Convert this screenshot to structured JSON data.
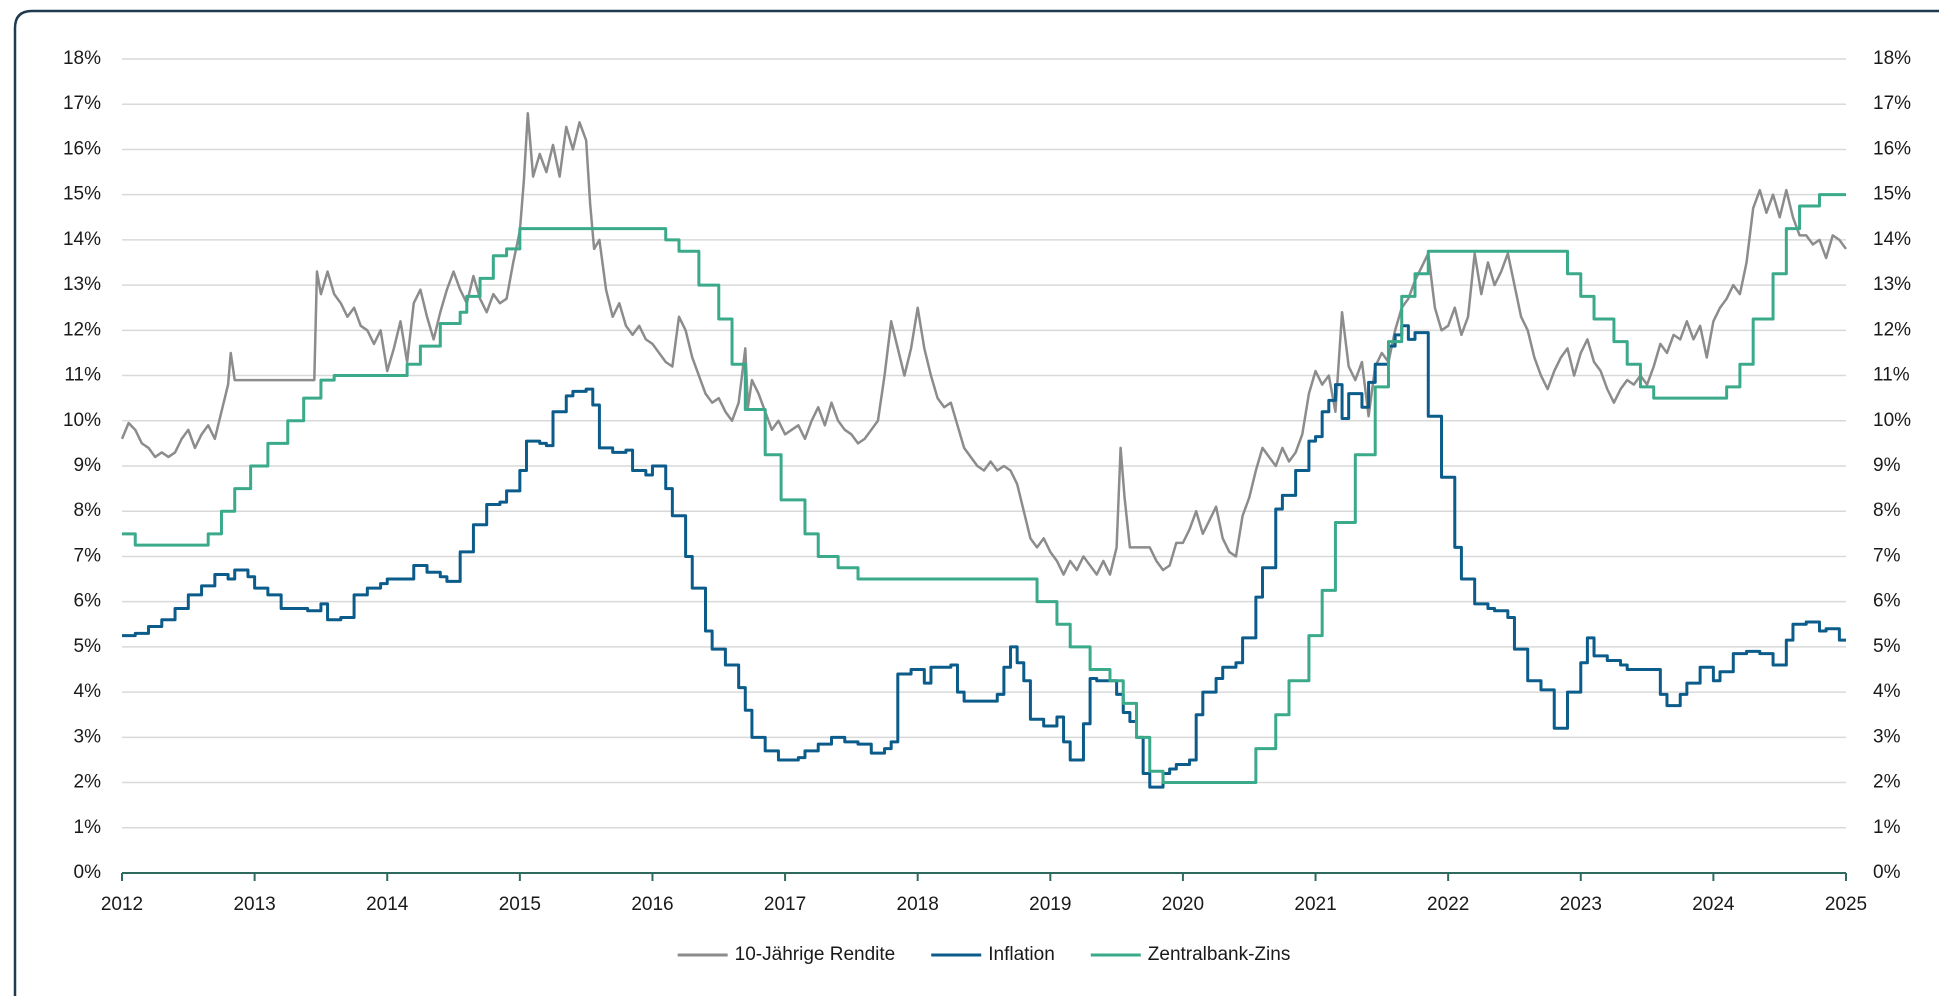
{
  "chart_data": {
    "type": "line",
    "xlim": [
      2012,
      2025
    ],
    "xticks": [
      2012,
      2013,
      2014,
      2015,
      2016,
      2017,
      2018,
      2019,
      2020,
      2021,
      2022,
      2023,
      2024,
      2025
    ],
    "ylim": [
      0,
      18
    ],
    "yticks": [
      {
        "value": 0,
        "label": "0%"
      },
      {
        "value": 1,
        "label": "1%"
      },
      {
        "value": 2,
        "label": "2%"
      },
      {
        "value": 3,
        "label": "3%"
      },
      {
        "value": 4,
        "label": "4%"
      },
      {
        "value": 5,
        "label": "5%"
      },
      {
        "value": 6,
        "label": "6%"
      },
      {
        "value": 7,
        "label": "7%"
      },
      {
        "value": 8,
        "label": "8%"
      },
      {
        "value": 9,
        "label": "9%"
      },
      {
        "value": 10,
        "label": "10%"
      },
      {
        "value": 11,
        "label": "11%"
      },
      {
        "value": 12,
        "label": "12%"
      },
      {
        "value": 13,
        "label": "13%"
      },
      {
        "value": 14,
        "label": "14%"
      },
      {
        "value": 15,
        "label": "15%"
      },
      {
        "value": 16,
        "label": "16%"
      },
      {
        "value": 17,
        "label": "17%"
      },
      {
        "value": 18,
        "label": "18%"
      }
    ],
    "y2lim": [
      0,
      18
    ],
    "y2ticks": [
      {
        "value": 0,
        "label": "0%"
      },
      {
        "value": 1,
        "label": "1%"
      },
      {
        "value": 2,
        "label": "2%"
      },
      {
        "value": 3,
        "label": "3%"
      },
      {
        "value": 4,
        "label": "4%"
      },
      {
        "value": 5,
        "label": "5%"
      },
      {
        "value": 6,
        "label": "6%"
      },
      {
        "value": 7,
        "label": "7%"
      },
      {
        "value": 8,
        "label": "8%"
      },
      {
        "value": 9,
        "label": "9%"
      },
      {
        "value": 10,
        "label": "10%"
      },
      {
        "value": 11,
        "label": "11%"
      },
      {
        "value": 12,
        "label": "12%"
      },
      {
        "value": 13,
        "label": "13%"
      },
      {
        "value": 14,
        "label": "14%"
      },
      {
        "value": 15,
        "label": "15%"
      },
      {
        "value": 16,
        "label": "16%"
      },
      {
        "value": 17,
        "label": "17%"
      },
      {
        "value": 18,
        "label": "18%"
      }
    ],
    "grid": true,
    "legend": "bottom",
    "series": [
      {
        "name": "10-Jährige Rendite",
        "color": "#8c8c8c",
        "step": false,
        "x": [
          2012.0,
          2012.05,
          2012.1,
          2012.15,
          2012.2,
          2012.25,
          2012.3,
          2012.35,
          2012.4,
          2012.45,
          2012.5,
          2012.55,
          2012.6,
          2012.65,
          2012.7,
          2012.75,
          2012.8,
          2012.82,
          2012.85,
          2013.0,
          2013.45,
          2013.47,
          2013.5,
          2013.55,
          2013.6,
          2013.65,
          2013.7,
          2013.75,
          2013.8,
          2013.85,
          2013.9,
          2013.95,
          2014.0,
          2014.05,
          2014.1,
          2014.15,
          2014.2,
          2014.25,
          2014.3,
          2014.35,
          2014.4,
          2014.45,
          2014.5,
          2014.55,
          2014.6,
          2014.65,
          2014.7,
          2014.75,
          2014.8,
          2014.85,
          2014.9,
          2014.95,
          2015.0,
          2015.03,
          2015.06,
          2015.1,
          2015.15,
          2015.2,
          2015.25,
          2015.3,
          2015.35,
          2015.4,
          2015.45,
          2015.5,
          2015.53,
          2015.56,
          2015.6,
          2015.65,
          2015.7,
          2015.75,
          2015.8,
          2015.85,
          2015.9,
          2015.95,
          2016.0,
          2016.05,
          2016.1,
          2016.15,
          2016.2,
          2016.25,
          2016.3,
          2016.35,
          2016.4,
          2016.45,
          2016.5,
          2016.55,
          2016.6,
          2016.65,
          2016.7,
          2016.72,
          2016.75,
          2016.8,
          2016.85,
          2016.9,
          2016.95,
          2017.0,
          2017.05,
          2017.1,
          2017.15,
          2017.2,
          2017.25,
          2017.3,
          2017.35,
          2017.4,
          2017.45,
          2017.5,
          2017.55,
          2017.6,
          2017.65,
          2017.7,
          2017.75,
          2017.8,
          2017.85,
          2017.9,
          2017.95,
          2018.0,
          2018.05,
          2018.1,
          2018.15,
          2018.2,
          2018.25,
          2018.3,
          2018.35,
          2018.4,
          2018.45,
          2018.5,
          2018.55,
          2018.6,
          2018.65,
          2018.7,
          2018.75,
          2018.8,
          2018.85,
          2018.9,
          2018.95,
          2019.0,
          2019.05,
          2019.1,
          2019.15,
          2019.2,
          2019.25,
          2019.3,
          2019.35,
          2019.4,
          2019.45,
          2019.5,
          2019.53,
          2019.56,
          2019.6,
          2019.75,
          2019.8,
          2019.85,
          2019.9,
          2019.95,
          2020.0,
          2020.05,
          2020.1,
          2020.15,
          2020.2,
          2020.25,
          2020.3,
          2020.35,
          2020.4,
          2020.45,
          2020.5,
          2020.55,
          2020.6,
          2020.65,
          2020.7,
          2020.75,
          2020.8,
          2020.85,
          2020.9,
          2020.95,
          2021.0,
          2021.05,
          2021.1,
          2021.15,
          2021.2,
          2021.25,
          2021.3,
          2021.35,
          2021.4,
          2021.45,
          2021.5,
          2021.55,
          2021.6,
          2021.65,
          2021.7,
          2021.75,
          2021.8,
          2021.85,
          2021.9,
          2021.95,
          2022.0,
          2022.05,
          2022.1,
          2022.15,
          2022.2,
          2022.25,
          2022.3,
          2022.35,
          2022.4,
          2022.45,
          2022.5,
          2022.55,
          2022.6,
          2022.65,
          2022.7,
          2022.75,
          2022.8,
          2022.85,
          2022.9,
          2022.95,
          2023.0,
          2023.05,
          2023.1,
          2023.15,
          2023.2,
          2023.25,
          2023.3,
          2023.35,
          2023.4,
          2023.45,
          2023.5,
          2023.55,
          2023.6,
          2023.65,
          2023.7,
          2023.75,
          2023.8,
          2023.85,
          2023.9,
          2023.95,
          2024.0,
          2024.05,
          2024.1,
          2024.15,
          2024.2,
          2024.25,
          2024.3,
          2024.35,
          2024.4,
          2024.45,
          2024.5,
          2024.55,
          2024.6,
          2024.65,
          2024.7,
          2024.75,
          2024.8,
          2024.85,
          2024.9,
          2024.95,
          2025.0
        ],
        "values": [
          9.6,
          9.95,
          9.8,
          9.5,
          9.4,
          9.2,
          9.3,
          9.2,
          9.3,
          9.6,
          9.8,
          9.4,
          9.7,
          9.9,
          9.6,
          10.2,
          10.8,
          11.5,
          10.9,
          10.9,
          10.9,
          13.3,
          12.8,
          13.3,
          12.8,
          12.6,
          12.3,
          12.5,
          12.1,
          12.0,
          11.7,
          12.0,
          11.1,
          11.6,
          12.2,
          11.3,
          12.6,
          12.9,
          12.3,
          11.8,
          12.4,
          12.9,
          13.3,
          12.9,
          12.6,
          13.2,
          12.7,
          12.4,
          12.8,
          12.6,
          12.7,
          13.5,
          14.2,
          15.3,
          16.8,
          15.4,
          15.9,
          15.5,
          16.1,
          15.4,
          16.5,
          16.0,
          16.6,
          16.2,
          14.8,
          13.8,
          14.0,
          12.9,
          12.3,
          12.6,
          12.1,
          11.9,
          12.1,
          11.8,
          11.7,
          11.5,
          11.3,
          11.2,
          12.3,
          12.0,
          11.4,
          11.0,
          10.6,
          10.4,
          10.5,
          10.2,
          10.0,
          10.4,
          11.6,
          10.3,
          10.9,
          10.6,
          10.2,
          9.8,
          10.0,
          9.7,
          9.8,
          9.9,
          9.6,
          10.0,
          10.3,
          9.9,
          10.4,
          10.0,
          9.8,
          9.7,
          9.5,
          9.6,
          9.8,
          10.0,
          11.0,
          12.2,
          11.6,
          11.0,
          11.6,
          12.5,
          11.6,
          11.0,
          10.5,
          10.3,
          10.4,
          9.9,
          9.4,
          9.2,
          9.0,
          8.9,
          9.1,
          8.9,
          9.0,
          8.9,
          8.6,
          8.0,
          7.4,
          7.2,
          7.4,
          7.1,
          6.9,
          6.6,
          6.9,
          6.7,
          7.0,
          6.8,
          6.6,
          6.9,
          6.6,
          7.2,
          9.4,
          8.3,
          7.2,
          7.2,
          6.9,
          6.7,
          6.8,
          7.3,
          7.3,
          7.6,
          8.0,
          7.5,
          7.8,
          8.1,
          7.4,
          7.1,
          7.0,
          7.9,
          8.3,
          8.9,
          9.4,
          9.2,
          9.0,
          9.4,
          9.1,
          9.3,
          9.7,
          10.6,
          11.1,
          10.8,
          11.0,
          10.2,
          12.4,
          11.2,
          10.9,
          11.3,
          10.1,
          11.2,
          11.5,
          11.3,
          12.0,
          12.5,
          12.7,
          13.1,
          13.4,
          13.7,
          12.5,
          12.0,
          12.1,
          12.5,
          11.9,
          12.3,
          13.7,
          12.8,
          13.5,
          13.0,
          13.3,
          13.7,
          13.0,
          12.3,
          12.0,
          11.4,
          11.0,
          10.7,
          11.1,
          11.4,
          11.6,
          11.0,
          11.5,
          11.8,
          11.3,
          11.1,
          10.7,
          10.4,
          10.7,
          10.9,
          10.8,
          11.0,
          10.8,
          11.2,
          11.7,
          11.5,
          11.9,
          11.8,
          12.2,
          11.8,
          12.1,
          11.4,
          12.2,
          12.5,
          12.7,
          13.0,
          12.8,
          13.5,
          14.7,
          15.1,
          14.6,
          15.0,
          14.5,
          15.1,
          14.5,
          14.1,
          14.1,
          13.9,
          14.0,
          13.6,
          14.1,
          14.0,
          13.8
        ]
      },
      {
        "name": "Inflation",
        "color": "#0b5c8a",
        "step": true,
        "x": [
          2012.0,
          2012.1,
          2012.2,
          2012.3,
          2012.4,
          2012.5,
          2012.6,
          2012.7,
          2012.8,
          2012.85,
          2012.95,
          2013.0,
          2013.1,
          2013.2,
          2013.4,
          2013.5,
          2013.55,
          2013.65,
          2013.75,
          2013.85,
          2013.95,
          2014.0,
          2014.2,
          2014.3,
          2014.4,
          2014.45,
          2014.55,
          2014.65,
          2014.75,
          2014.85,
          2014.9,
          2015.0,
          2015.05,
          2015.15,
          2015.2,
          2015.25,
          2015.35,
          2015.4,
          2015.5,
          2015.55,
          2015.6,
          2015.7,
          2015.8,
          2015.85,
          2015.95,
          2016.0,
          2016.1,
          2016.15,
          2016.25,
          2016.3,
          2016.4,
          2016.45,
          2016.55,
          2016.65,
          2016.7,
          2016.75,
          2016.85,
          2016.95,
          2017.1,
          2017.15,
          2017.25,
          2017.35,
          2017.45,
          2017.55,
          2017.65,
          2017.75,
          2017.8,
          2017.85,
          2017.95,
          2018.05,
          2018.1,
          2018.25,
          2018.3,
          2018.35,
          2018.5,
          2018.6,
          2018.65,
          2018.7,
          2018.75,
          2018.8,
          2018.85,
          2018.95,
          2019.05,
          2019.1,
          2019.15,
          2019.25,
          2019.3,
          2019.35,
          2019.5,
          2019.55,
          2019.6,
          2019.65,
          2019.7,
          2019.75,
          2019.85,
          2019.9,
          2019.95,
          2020.05,
          2020.1,
          2020.15,
          2020.25,
          2020.3,
          2020.4,
          2020.45,
          2020.55,
          2020.6,
          2020.7,
          2020.75,
          2020.85,
          2020.95,
          2021.0,
          2021.05,
          2021.1,
          2021.15,
          2021.2,
          2021.25,
          2021.35,
          2021.4,
          2021.45,
          2021.55,
          2021.6,
          2021.65,
          2021.7,
          2021.75,
          2021.85,
          2021.95,
          2022.05,
          2022.1,
          2022.2,
          2022.3,
          2022.35,
          2022.45,
          2022.5,
          2022.6,
          2022.7,
          2022.8,
          2022.9,
          2023.0,
          2023.05,
          2023.1,
          2023.2,
          2023.3,
          2023.35,
          2023.5,
          2023.6,
          2023.65,
          2023.75,
          2023.8,
          2023.9,
          2024.0,
          2024.05,
          2024.15,
          2024.25,
          2024.35,
          2024.45,
          2024.55,
          2024.6,
          2024.7,
          2024.8,
          2024.85,
          2024.95,
          2025.0
        ],
        "values": [
          5.25,
          5.3,
          5.45,
          5.6,
          5.85,
          6.15,
          6.35,
          6.6,
          6.5,
          6.7,
          6.55,
          6.3,
          6.15,
          5.85,
          5.8,
          5.95,
          5.6,
          5.65,
          6.15,
          6.3,
          6.4,
          6.5,
          6.8,
          6.65,
          6.55,
          6.45,
          7.1,
          7.7,
          8.15,
          8.2,
          8.45,
          8.9,
          9.55,
          9.5,
          9.45,
          10.2,
          10.55,
          10.65,
          10.7,
          10.35,
          9.4,
          9.3,
          9.35,
          8.9,
          8.8,
          9.0,
          8.5,
          7.9,
          7.0,
          6.3,
          5.35,
          4.95,
          4.6,
          4.1,
          3.6,
          3.0,
          2.7,
          2.5,
          2.55,
          2.7,
          2.85,
          3.0,
          2.9,
          2.85,
          2.65,
          2.75,
          2.9,
          4.4,
          4.5,
          4.2,
          4.55,
          4.6,
          4.0,
          3.8,
          3.8,
          3.95,
          4.55,
          5.0,
          4.65,
          4.25,
          3.4,
          3.25,
          3.45,
          2.9,
          2.5,
          3.3,
          4.3,
          4.25,
          3.95,
          3.55,
          3.35,
          3.0,
          2.2,
          1.9,
          2.2,
          2.3,
          2.4,
          2.5,
          3.5,
          4.0,
          4.3,
          4.55,
          4.65,
          5.2,
          6.1,
          6.75,
          8.05,
          8.35,
          8.9,
          9.55,
          9.65,
          10.2,
          10.45,
          10.8,
          10.05,
          10.6,
          10.3,
          10.85,
          11.25,
          11.65,
          11.9,
          12.1,
          11.8,
          11.95,
          10.1,
          8.75,
          7.2,
          6.5,
          5.95,
          5.85,
          5.8,
          5.65,
          4.95,
          4.25,
          4.05,
          3.2,
          4.0,
          4.65,
          5.2,
          4.8,
          4.7,
          4.6,
          4.5,
          4.5,
          3.95,
          3.7,
          3.95,
          4.2,
          4.55,
          4.25,
          4.45,
          4.85,
          4.9,
          4.85,
          4.6,
          5.15,
          5.5,
          5.55,
          5.35,
          5.4,
          5.15,
          5.15
        ]
      },
      {
        "name": "Zentralbank-Zins",
        "color": "#3aaa8a",
        "step": true,
        "x": [
          2012.0,
          2012.1,
          2012.65,
          2012.75,
          2012.85,
          2012.97,
          2013.1,
          2013.25,
          2013.37,
          2013.5,
          2013.6,
          2014.0,
          2014.15,
          2014.25,
          2014.4,
          2014.55,
          2014.6,
          2014.7,
          2014.8,
          2014.9,
          2015.0,
          2016.1,
          2016.2,
          2016.35,
          2016.5,
          2016.6,
          2016.7,
          2016.85,
          2016.97,
          2017.15,
          2017.25,
          2017.4,
          2017.55,
          2018.9,
          2019.05,
          2019.15,
          2019.3,
          2019.45,
          2019.55,
          2019.65,
          2019.75,
          2019.85,
          2020.55,
          2020.7,
          2020.8,
          2020.95,
          2021.05,
          2021.15,
          2021.3,
          2021.45,
          2021.55,
          2021.65,
          2021.75,
          2021.85,
          2022.9,
          2023.0,
          2023.1,
          2023.25,
          2023.35,
          2023.45,
          2023.55,
          2024.1,
          2024.2,
          2024.3,
          2024.45,
          2024.55,
          2024.65,
          2024.8,
          2025.0
        ],
        "values": [
          7.5,
          7.25,
          7.5,
          8.0,
          8.5,
          9.0,
          9.5,
          10.0,
          10.5,
          10.9,
          11.0,
          11.0,
          11.25,
          11.65,
          12.15,
          12.4,
          12.75,
          13.15,
          13.65,
          13.8,
          14.25,
          14.0,
          13.75,
          13.0,
          12.25,
          11.25,
          10.25,
          9.25,
          8.25,
          7.5,
          7.0,
          6.75,
          6.5,
          6.0,
          5.5,
          5.0,
          4.5,
          4.25,
          3.75,
          3.0,
          2.25,
          2.0,
          2.75,
          3.5,
          4.25,
          5.25,
          6.25,
          7.75,
          9.25,
          10.75,
          11.75,
          12.75,
          13.25,
          13.75,
          13.25,
          12.75,
          12.25,
          11.75,
          11.25,
          10.75,
          10.5,
          10.75,
          11.25,
          12.25,
          13.25,
          14.25,
          14.75,
          15.0,
          15.0
        ]
      }
    ]
  }
}
